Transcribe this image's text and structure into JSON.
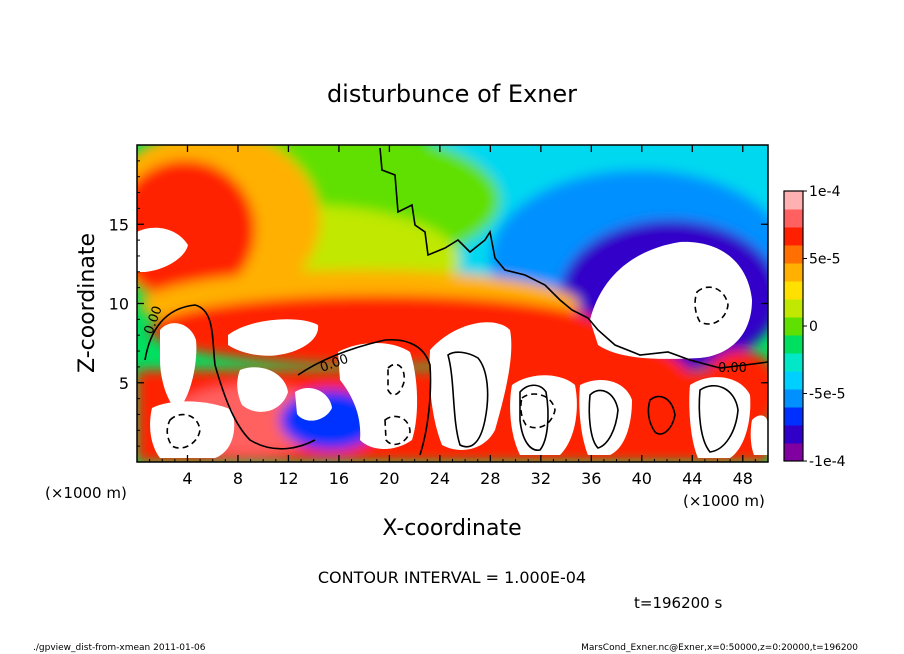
{
  "chart_data": {
    "type": "heatmap",
    "title": "disturbunce of Exner",
    "xlabel": "X-coordinate",
    "ylabel": "Z-coordinate",
    "x_unit": "(×1000 m)",
    "y_unit": "(×1000 m)",
    "x_range": [
      0,
      50
    ],
    "y_range": [
      0,
      20
    ],
    "x_ticks": [
      "4",
      "8",
      "12",
      "16",
      "20",
      "24",
      "28",
      "32",
      "36",
      "40",
      "44",
      "48"
    ],
    "y_ticks": [
      "5",
      "10",
      "15"
    ],
    "colorbar": {
      "min": -0.0001,
      "max": 0.0001,
      "tick_labels": [
        "1e-4",
        "5e-5",
        "0",
        "-5e-5",
        "-1e-4"
      ],
      "colors": [
        "#8000a0",
        "#3000c8",
        "#0030ff",
        "#0090ff",
        "#00d0ff",
        "#00e8c8",
        "#00e060",
        "#60e000",
        "#c0e800",
        "#ffe000",
        "#ffb000",
        "#ff7000",
        "#ff2000",
        "#ff6060",
        "#ffb0b0"
      ]
    },
    "contour_label": "0.00",
    "contour_interval_text": "CONTOUR INTERVAL = 1.000E-04",
    "time_text": "t=196200 s"
  },
  "footer": {
    "left": "./gpview_dist-from-xmean  2011-01-06",
    "right": "MarsCond_Exner.nc@Exner,x=0:50000,z=0:20000,t=196200"
  }
}
